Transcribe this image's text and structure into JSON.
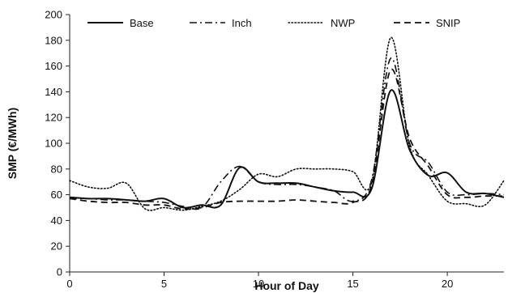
{
  "chart_data": {
    "type": "line",
    "title": "",
    "xlabel": "Hour of Day",
    "ylabel": "SMP (€/MWh)",
    "xlim": [
      0,
      23
    ],
    "ylim": [
      0,
      200
    ],
    "xticks": [
      0,
      5,
      10,
      15,
      20
    ],
    "yticks": [
      0,
      20,
      40,
      60,
      80,
      100,
      120,
      140,
      160,
      180,
      200
    ],
    "grid": false,
    "legend_position": "top",
    "colors": {
      "line": "#111111",
      "axis": "#222222"
    },
    "x": [
      0,
      1,
      2,
      3,
      4,
      5,
      6,
      7,
      8,
      9,
      10,
      11,
      12,
      13,
      14,
      15,
      16,
      17,
      18,
      19,
      20,
      21,
      22,
      23
    ],
    "series": [
      {
        "name": "Base",
        "style": "solid",
        "values": [
          58,
          57,
          57,
          56,
          55,
          57,
          50,
          52,
          52,
          81,
          70,
          69,
          69,
          66,
          63,
          62,
          65,
          141,
          95,
          75,
          77,
          62,
          61,
          58
        ]
      },
      {
        "name": "Inch",
        "style": "dashdot",
        "values": [
          57,
          57,
          56,
          56,
          55,
          54,
          51,
          50,
          70,
          82,
          70,
          68,
          68,
          66,
          63,
          55,
          72,
          166,
          100,
          85,
          62,
          60,
          61,
          60
        ]
      },
      {
        "name": "NWP",
        "style": "dotted",
        "values": [
          71,
          66,
          65,
          69,
          49,
          50,
          48,
          51,
          55,
          64,
          76,
          74,
          80,
          80,
          80,
          78,
          70,
          182,
          98,
          75,
          55,
          53,
          52,
          71
        ]
      },
      {
        "name": "SNIP",
        "style": "dashed",
        "values": [
          57,
          55,
          54,
          54,
          52,
          52,
          49,
          50,
          54,
          55,
          55,
          55,
          56,
          55,
          54,
          54,
          68,
          157,
          104,
          82,
          60,
          58,
          59,
          59
        ]
      }
    ]
  }
}
